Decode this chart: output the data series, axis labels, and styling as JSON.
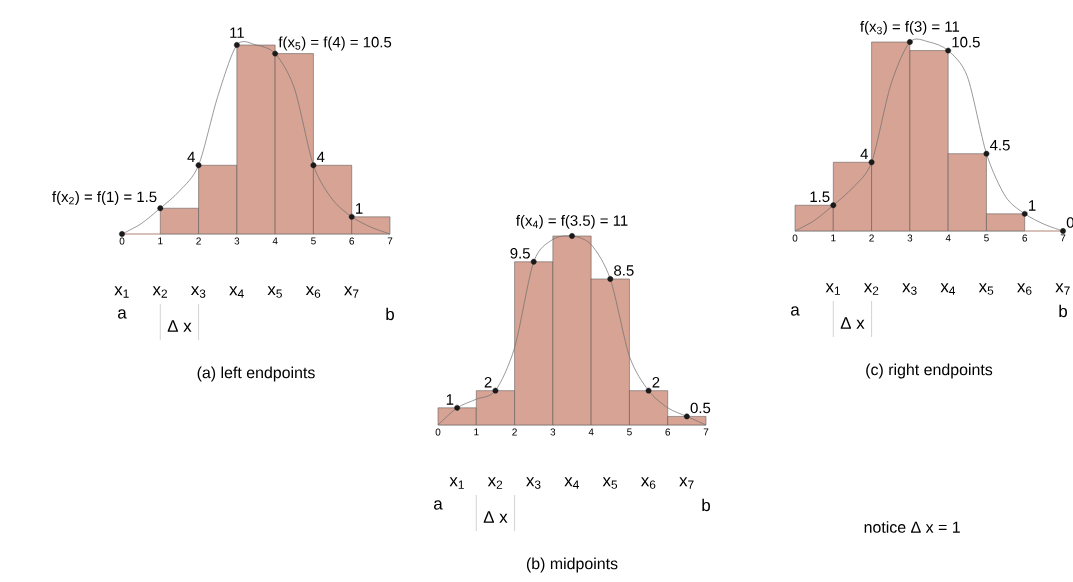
{
  "chart_data": [
    {
      "type": "bar",
      "title": "(a) left endpoints",
      "xlim": [
        0,
        7
      ],
      "xticks": [
        0,
        1,
        2,
        3,
        4,
        5,
        6,
        7
      ],
      "tick_labels": "x",
      "series": [
        {
          "color": "#d6a394",
          "x": [
            0.5,
            1.5,
            2.5,
            3.5,
            4.5,
            5.5,
            6.5
          ],
          "values": [
            0,
            1.5,
            4,
            11,
            10.5,
            4,
            1
          ]
        },
        {
          "type": "line",
          "color": "#6e6e6e",
          "x": [
            0,
            0.5,
            1,
            1.5,
            2,
            2.5,
            3,
            3.5,
            4,
            4.5,
            5,
            5.5,
            6,
            6.5,
            7
          ],
          "values": [
            0,
            0.6,
            1.5,
            2.5,
            4,
            8,
            11,
            11,
            10.5,
            8.5,
            4,
            2,
            1,
            0.4,
            0
          ]
        },
        {
          "type": "scatter",
          "marker": "circle",
          "color": "#1a1a1a",
          "x": [
            0,
            1,
            2,
            3,
            4,
            5,
            6
          ],
          "values": [
            0,
            1.5,
            4,
            11,
            10.5,
            4,
            1
          ],
          "value_labels": [
            null,
            "f(x$_{2}$) = f(1) = 1.5",
            "4",
            "11",
            "f(x$_{5}$) = f(4) = 10.5",
            "4",
            "1"
          ]
        }
      ],
      "annotations": [
        "x$_{1}$",
        "x$_{2}$",
        "x$_{3}$",
        "x$_{4}$",
        "x$_{5}$",
        "x$_{6}$",
        "x$_{7}$",
        "a",
        "b",
        "Δ x"
      ]
    },
    {
      "type": "bar",
      "title": "(b) midpoints",
      "xlim": [
        0,
        7
      ],
      "xticks": [
        0,
        1,
        2,
        3,
        4,
        5,
        6,
        7
      ],
      "tick_labels": "x",
      "series": [
        {
          "color": "#d6a394",
          "x": [
            0.5,
            1.5,
            2.5,
            3.5,
            4.5,
            5.5,
            6.5
          ],
          "values": [
            1,
            2,
            9.5,
            11,
            8.5,
            2,
            0.5
          ]
        },
        {
          "type": "line",
          "color": "#6e6e6e",
          "x": [
            0,
            0.5,
            1,
            1.5,
            2,
            2.5,
            3,
            3.5,
            4,
            4.5,
            5,
            5.5,
            6,
            6.5,
            7
          ],
          "values": [
            0,
            1,
            1.5,
            2,
            4.5,
            9.5,
            10.8,
            11,
            10.5,
            8.5,
            4,
            2,
            1,
            0.5,
            0
          ]
        },
        {
          "type": "scatter",
          "marker": "circle",
          "color": "#1a1a1a",
          "x": [
            0.5,
            1.5,
            2.5,
            3.5,
            4.5,
            5.5,
            6.5
          ],
          "values": [
            1,
            2,
            9.5,
            11,
            8.5,
            2,
            0.5
          ],
          "value_labels": [
            "1",
            "2",
            "9.5",
            "f(x$_{4}$) = f(3.5) = 11",
            "8.5",
            "2",
            "0.5"
          ]
        }
      ],
      "annotations": [
        "x$_{1}$",
        "x$_{2}$",
        "x$_{3}$",
        "x$_{4}$",
        "x$_{5}$",
        "x$_{6}$",
        "x$_{7}$",
        "a",
        "b",
        "Δ x"
      ]
    },
    {
      "type": "bar",
      "title": "(c) right endpoints",
      "xlim": [
        0,
        7
      ],
      "xticks": [
        0,
        1,
        2,
        3,
        4,
        5,
        6,
        7
      ],
      "tick_labels": "x",
      "series": [
        {
          "color": "#d6a394",
          "x": [
            0.5,
            1.5,
            2.5,
            3.5,
            4.5,
            5.5,
            6.5
          ],
          "values": [
            1.5,
            4,
            11,
            10.5,
            4.5,
            1,
            0
          ]
        },
        {
          "type": "line",
          "color": "#6e6e6e",
          "x": [
            0,
            0.5,
            1,
            1.5,
            2,
            2.5,
            3,
            3.5,
            4,
            4.5,
            5,
            5.5,
            6,
            6.5,
            7
          ],
          "values": [
            0,
            0.6,
            1.5,
            2.5,
            4,
            8.5,
            11,
            11,
            10.5,
            9,
            4.5,
            2,
            1,
            0.4,
            0
          ]
        },
        {
          "type": "scatter",
          "marker": "circle",
          "color": "#1a1a1a",
          "x": [
            1,
            2,
            3,
            4,
            5,
            6,
            7
          ],
          "values": [
            1.5,
            4,
            11,
            10.5,
            4.5,
            1,
            0
          ],
          "value_labels": [
            "1.5",
            "4",
            "f(x$_{3}$) = f(3) = 11",
            "10.5",
            "4.5",
            "1",
            "0"
          ]
        }
      ],
      "annotations": [
        "x$_{1}$",
        "x$_{2}$",
        "x$_{3}$",
        "x$_{4}$",
        "x$_{5}$",
        "x$_{6}$",
        "x$_{7}$",
        "a",
        "b",
        "Δ x",
        "notice   Δ x = 1"
      ]
    }
  ]
}
